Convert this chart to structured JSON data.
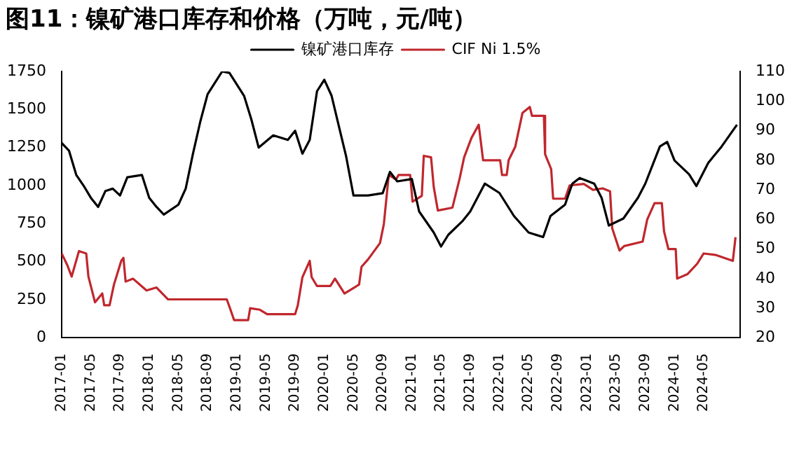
{
  "chart_data": {
    "type": "line",
    "title": "图11：镍矿港口库存和价格（万吨，元/吨）",
    "legend": "top",
    "grid": false,
    "marker": "none",
    "line_style": "solid",
    "xlim": [
      "2017-01",
      "2024-10"
    ],
    "xticks": [
      "2017-01",
      "2017-05",
      "2017-09",
      "2018-01",
      "2018-05",
      "2018-09",
      "2019-01",
      "2019-05",
      "2019-09",
      "2020-01",
      "2020-05",
      "2020-09",
      "2021-01",
      "2021-05",
      "2021-09",
      "2022-01",
      "2022-05",
      "2022-09",
      "2023-01",
      "2023-05",
      "2023-09",
      "2024-01",
      "2024-05"
    ],
    "ylim": [
      0,
      1750
    ],
    "yticks": [
      0,
      250,
      500,
      750,
      1000,
      1250,
      1500,
      1750
    ],
    "y2lim": [
      20,
      110
    ],
    "y2ticks": [
      20,
      30,
      40,
      50,
      60,
      70,
      80,
      90,
      100,
      110
    ],
    "series": [
      {
        "name": "镍矿港口库存",
        "color": "#000000",
        "x": [
          "2017-01",
          "2017-02",
          "2017-03",
          "2017-04",
          "2017-05",
          "2017-06",
          "2017-07",
          "2017-08",
          "2017-09",
          "2017-10",
          "2017-12",
          "2018-01",
          "2018-02",
          "2018-03",
          "2018-05",
          "2018-06",
          "2018-07",
          "2018-08",
          "2018-09",
          "2018-11",
          "2018-12",
          "2019-02",
          "2019-03",
          "2019-04",
          "2019-06",
          "2019-08",
          "2019-09",
          "2019-10",
          "2019-11",
          "2019-12",
          "2020-01",
          "2020-02",
          "2020-03",
          "2020-04",
          "2020-05",
          "2020-07",
          "2020-09",
          "2020-10",
          "2020-11",
          "2021-01",
          "2021-02",
          "2021-04",
          "2021-05",
          "2021-06",
          "2021-08",
          "2021-09",
          "2021-11",
          "2022-01",
          "2022-03",
          "2022-05",
          "2022-07",
          "2022-08",
          "2022-10",
          "2022-11",
          "2022-12",
          "2023-02",
          "2023-03",
          "2023-04",
          "2023-06",
          "2023-08",
          "2023-09",
          "2023-10",
          "2023-11",
          "2023-12",
          "2024-01",
          "2024-03",
          "2024-04",
          "2024-05-20",
          "2024-07-15",
          "2024-09-18"
        ],
        "values": [
          1280,
          1230,
          1070,
          1000,
          920,
          860,
          965,
          980,
          935,
          1055,
          1070,
          920,
          860,
          810,
          875,
          980,
          1210,
          1420,
          1600,
          1750,
          1740,
          1590,
          1435,
          1250,
          1330,
          1300,
          1360,
          1210,
          1300,
          1620,
          1695,
          1590,
          1390,
          1190,
          935,
          935,
          950,
          1090,
          1028,
          1043,
          830,
          692,
          600,
          677,
          770,
          830,
          1013,
          952,
          800,
          692,
          662,
          800,
          875,
          1013,
          1050,
          1013,
          921,
          738,
          784,
          921,
          1013,
          1135,
          1257,
          1287,
          1165,
          1074,
          997,
          1150,
          1257,
          1400
        ]
      },
      {
        "name": "CIF Ni 1.5%",
        "color": "#c0272d",
        "axis": "y2",
        "x": [
          "2017-01-01",
          "2017-01-24",
          "2017-02-12",
          "2017-03-12",
          "2017-04-12",
          "2017-04-21",
          "2017-05-18",
          "2017-06-18",
          "2017-06-26",
          "2017-07-18",
          "2017-08-06",
          "2017-09-06",
          "2017-09-15",
          "2017-09-24",
          "2017-10-24",
          "2017-12-20",
          "2018-02-01",
          "2018-03-18",
          "2018-11-20",
          "2018-12-01",
          "2018-12-20",
          "2019-02-18",
          "2019-02-26",
          "2019-04-06",
          "2019-05-06",
          "2019-09-01",
          "2019-09-12",
          "2019-10-01",
          "2019-11-01",
          "2019-11-09",
          "2019-12-01",
          "2020-01-26",
          "2020-02-15",
          "2020-03-24",
          "2020-05-24",
          "2020-06-04",
          "2020-07-01",
          "2020-08-20",
          "2020-09-06",
          "2020-09-26",
          "2020-10-26",
          "2020-11-06",
          "2020-12-24",
          "2021-01-04",
          "2021-02-12",
          "2021-02-20",
          "2021-03-20",
          "2021-04-01",
          "2021-04-18",
          "2021-06-18",
          "2021-07-18",
          "2021-08-06",
          "2021-09-06",
          "2021-10-06",
          "2021-10-24",
          "2022-01-04",
          "2022-01-12",
          "2022-02-01",
          "2022-02-09",
          "2022-03-06",
          "2022-04-06",
          "2022-05-06",
          "2022-05-15",
          "2022-07-04",
          "2022-07-09",
          "2022-08-04",
          "2022-08-12",
          "2022-10-01",
          "2022-10-20",
          "2022-12-18",
          "2023-01-26",
          "2023-03-06",
          "2023-04-06",
          "2023-04-15",
          "2023-05-15",
          "2023-06-04",
          "2023-08-20",
          "2023-09-09",
          "2023-10-09",
          "2023-11-09",
          "2023-11-18",
          "2023-12-06",
          "2024-01-06",
          "2024-01-12",
          "2024-02-24",
          "2024-04-04",
          "2024-05-01",
          "2024-06-20",
          "2024-09-01",
          "2024-09-12"
        ],
        "values": [
          48.5,
          44.6,
          40.7,
          49.3,
          48.5,
          40.7,
          32,
          35,
          31,
          31,
          38,
          46,
          47,
          39,
          40,
          36,
          37,
          33,
          33,
          30.5,
          26,
          26,
          30,
          29.5,
          28,
          28,
          31,
          40.5,
          46,
          40.5,
          37.5,
          37.5,
          40,
          35,
          38,
          44,
          46.5,
          52,
          58.5,
          75,
          73.5,
          75,
          75,
          66,
          68,
          81.5,
          81,
          71,
          63,
          64,
          74,
          81,
          87.5,
          92,
          80,
          80,
          75,
          75,
          80,
          84.5,
          96,
          98,
          95,
          95,
          82,
          77,
          67,
          67,
          71.5,
          72,
          70,
          70.5,
          69.5,
          57,
          49.5,
          51,
          52.5,
          60,
          65.5,
          65.5,
          56,
          50,
          50,
          40,
          41.5,
          45,
          48.5,
          48,
          46,
          54
        ]
      }
    ]
  }
}
